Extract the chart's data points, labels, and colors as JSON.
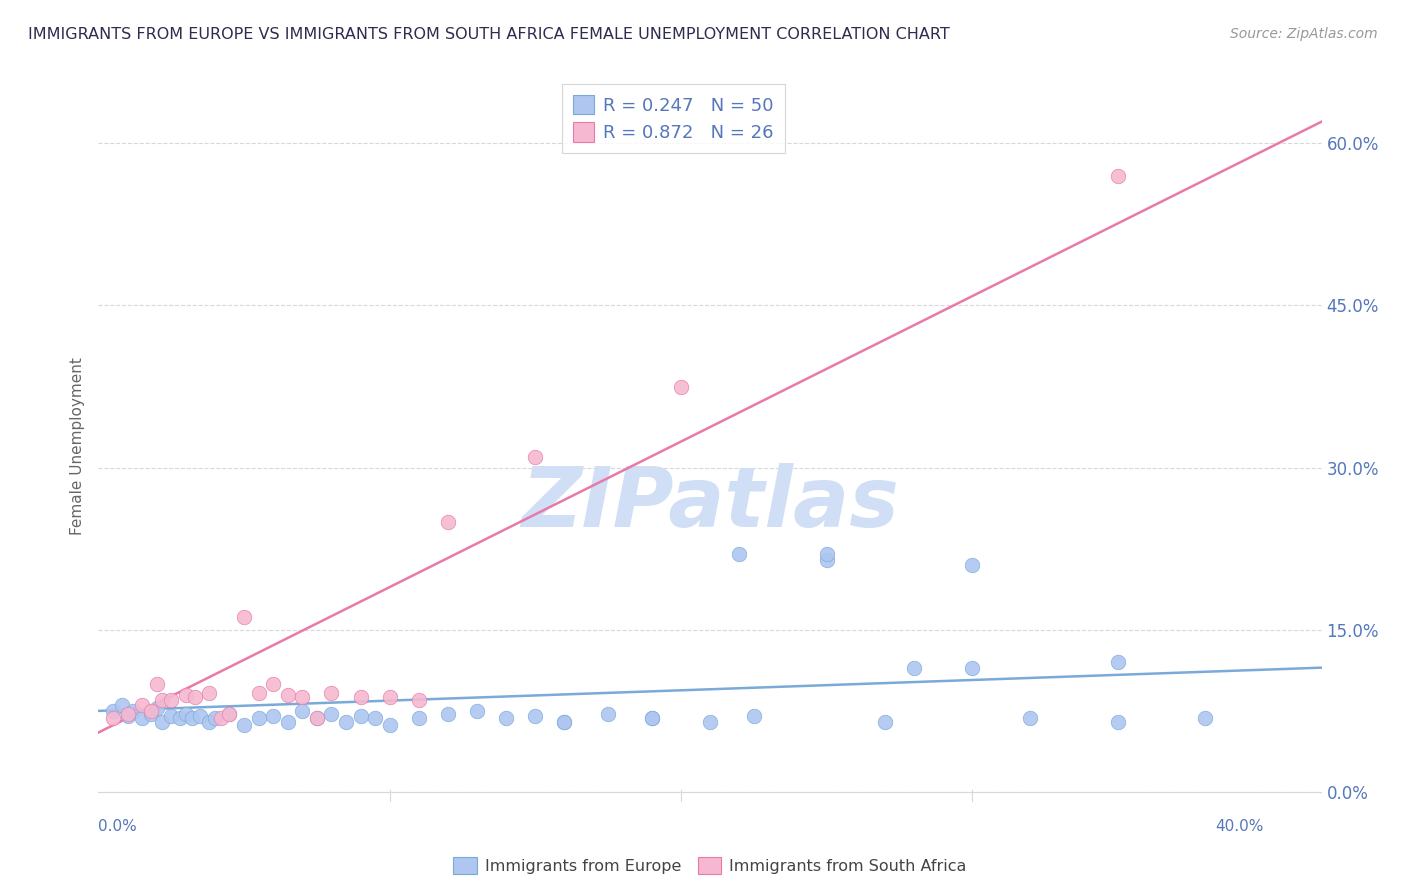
{
  "title": "IMMIGRANTS FROM EUROPE VS IMMIGRANTS FROM SOUTH AFRICA FEMALE UNEMPLOYMENT CORRELATION CHART",
  "source": "Source: ZipAtlas.com",
  "ylabel": "Female Unemployment",
  "yticks_right_vals": [
    0.0,
    0.15,
    0.3,
    0.45,
    0.6
  ],
  "ytick_labels": [
    "0.0%",
    "15.0%",
    "30.0%",
    "45.0%",
    "60.0%"
  ],
  "xlim": [
    0.0,
    0.42
  ],
  "ylim": [
    -0.01,
    0.65
  ],
  "legend_europe_R": "0.247",
  "legend_europe_N": "50",
  "legend_sa_R": "0.872",
  "legend_sa_N": "26",
  "europe_color": "#aec6f0",
  "europe_edge_color": "#7aaad8",
  "europe_line_color": "#7aaad8",
  "sa_color": "#f5b8d0",
  "sa_edge_color": "#e87aaa",
  "sa_line_color": "#e87aaa",
  "europe_scatter_x": [
    0.005,
    0.008,
    0.01,
    0.012,
    0.015,
    0.018,
    0.02,
    0.022,
    0.025,
    0.028,
    0.03,
    0.032,
    0.035,
    0.038,
    0.04,
    0.045,
    0.05,
    0.055,
    0.06,
    0.065,
    0.07,
    0.075,
    0.08,
    0.085,
    0.09,
    0.095,
    0.1,
    0.11,
    0.12,
    0.13,
    0.14,
    0.15,
    0.16,
    0.175,
    0.19,
    0.21,
    0.225,
    0.25,
    0.27,
    0.3,
    0.32,
    0.35,
    0.38,
    0.25,
    0.28,
    0.3,
    0.35,
    0.22,
    0.19,
    0.16
  ],
  "europe_scatter_y": [
    0.075,
    0.08,
    0.07,
    0.075,
    0.068,
    0.072,
    0.078,
    0.065,
    0.07,
    0.068,
    0.072,
    0.068,
    0.07,
    0.065,
    0.068,
    0.072,
    0.062,
    0.068,
    0.07,
    0.065,
    0.075,
    0.068,
    0.072,
    0.065,
    0.07,
    0.068,
    0.062,
    0.068,
    0.072,
    0.075,
    0.068,
    0.07,
    0.065,
    0.072,
    0.068,
    0.065,
    0.07,
    0.215,
    0.065,
    0.115,
    0.068,
    0.065,
    0.068,
    0.22,
    0.115,
    0.21,
    0.12,
    0.22,
    0.068,
    0.065
  ],
  "sa_scatter_x": [
    0.005,
    0.01,
    0.015,
    0.018,
    0.02,
    0.022,
    0.025,
    0.03,
    0.033,
    0.038,
    0.042,
    0.045,
    0.05,
    0.055,
    0.06,
    0.065,
    0.07,
    0.075,
    0.08,
    0.09,
    0.1,
    0.11,
    0.12,
    0.15,
    0.2,
    0.35
  ],
  "sa_scatter_y": [
    0.068,
    0.072,
    0.08,
    0.075,
    0.1,
    0.085,
    0.085,
    0.09,
    0.088,
    0.092,
    0.068,
    0.072,
    0.162,
    0.092,
    0.1,
    0.09,
    0.088,
    0.068,
    0.092,
    0.088,
    0.088,
    0.085,
    0.25,
    0.31,
    0.375,
    0.57
  ],
  "background_color": "#ffffff",
  "grid_color": "#d8d8d8",
  "title_color": "#2d2d4e",
  "watermark_text": "ZIPatlas",
  "watermark_color": "#d0dff5",
  "bottom_legend_labels": [
    "Immigrants from Europe",
    "Immigrants from South Africa"
  ]
}
